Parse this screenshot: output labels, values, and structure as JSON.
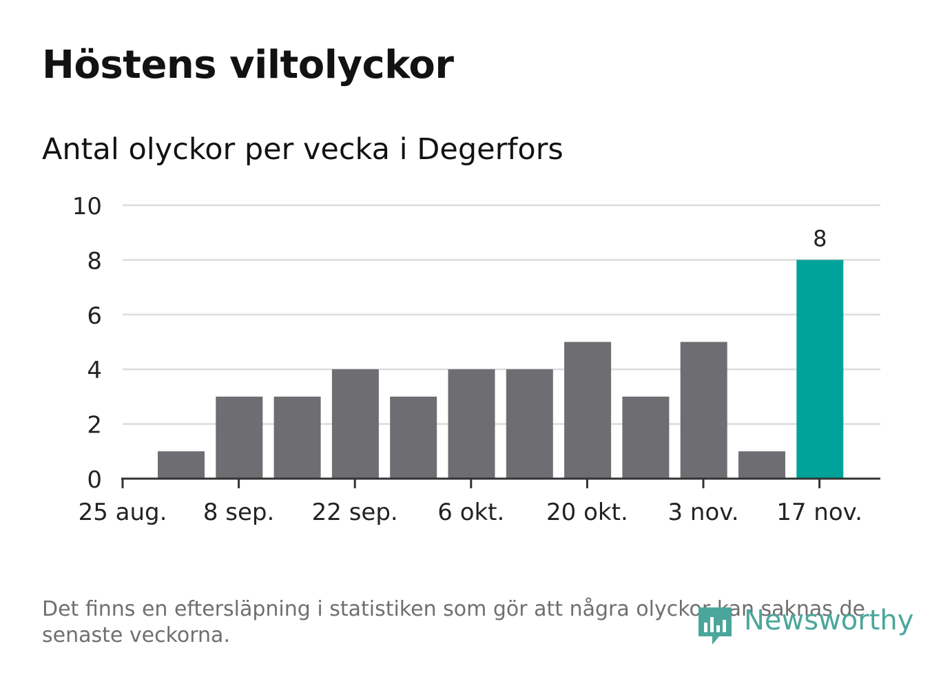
{
  "title": "Höstens viltolyckor",
  "subtitle": "Antal olyckor per vecka i Degerfors",
  "footnote": "Det finns en eftersläpning i statistiken som gör att några olyckor kan saknas de senaste veckorna.",
  "logo": {
    "text": "Newsworthy",
    "icon": "newsworthy-logo-icon",
    "color": "#4aa69b"
  },
  "colors": {
    "bar": "#6e6d72",
    "highlight": "#00a39a",
    "grid": "#dcdcdc",
    "axis": "#333333"
  },
  "chart_data": {
    "type": "bar",
    "title": "Höstens viltolyckor",
    "subtitle": "Antal olyckor per vecka i Degerfors",
    "xlabel": "",
    "ylabel": "",
    "ylim": [
      0,
      10
    ],
    "yticks": [
      0,
      2,
      4,
      6,
      8,
      10
    ],
    "x_ticks": [
      "25 aug.",
      "8 sep.",
      "22 sep.",
      "6 okt.",
      "20 okt.",
      "3 nov.",
      "17 nov."
    ],
    "values": [
      1,
      3,
      3,
      4,
      3,
      4,
      4,
      5,
      3,
      5,
      1,
      8
    ],
    "highlight_index": 11,
    "data_labels": [
      {
        "index": 11,
        "text": "8"
      }
    ],
    "grid": true,
    "legend": "none"
  }
}
